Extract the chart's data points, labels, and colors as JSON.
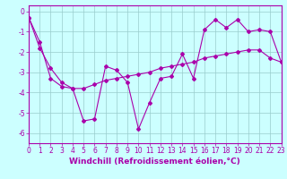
{
  "xlabel": "Windchill (Refroidissement éolien,°C)",
  "line1_x": [
    0,
    1,
    2,
    3,
    4,
    5,
    6,
    7,
    8,
    9,
    10,
    11,
    12,
    13,
    14,
    15,
    16,
    17,
    18,
    19,
    20,
    21,
    22,
    23
  ],
  "line1_y": [
    -0.3,
    -1.5,
    -3.3,
    -3.7,
    -3.8,
    -5.4,
    -5.3,
    -2.7,
    -2.9,
    -3.5,
    -5.8,
    -4.5,
    -3.3,
    -3.2,
    -2.1,
    -3.3,
    -0.9,
    -0.4,
    -0.8,
    -0.4,
    -1.0,
    -0.9,
    -1.0,
    -2.5
  ],
  "line2_x": [
    0,
    1,
    2,
    3,
    4,
    5,
    6,
    7,
    8,
    9,
    10,
    11,
    12,
    13,
    14,
    15,
    16,
    17,
    18,
    19,
    20,
    21,
    22,
    23
  ],
  "line2_y": [
    -0.3,
    -1.8,
    -2.8,
    -3.5,
    -3.8,
    -3.8,
    -3.6,
    -3.4,
    -3.3,
    -3.2,
    -3.1,
    -3.0,
    -2.8,
    -2.7,
    -2.6,
    -2.5,
    -2.3,
    -2.2,
    -2.1,
    -2.0,
    -1.9,
    -1.9,
    -2.3,
    -2.5
  ],
  "line_color": "#aa00aa",
  "marker": "D",
  "markersize": 2,
  "linewidth": 0.8,
  "xlim": [
    0,
    23
  ],
  "ylim": [
    -6.5,
    0.3
  ],
  "yticks": [
    0,
    -1,
    -2,
    -3,
    -4,
    -5,
    -6
  ],
  "xticks": [
    0,
    1,
    2,
    3,
    4,
    5,
    6,
    7,
    8,
    9,
    10,
    11,
    12,
    13,
    14,
    15,
    16,
    17,
    18,
    19,
    20,
    21,
    22,
    23
  ],
  "bg_color": "#ccffff",
  "grid_color": "#99cccc",
  "tick_fontsize": 5.5,
  "xlabel_fontsize": 6.5
}
